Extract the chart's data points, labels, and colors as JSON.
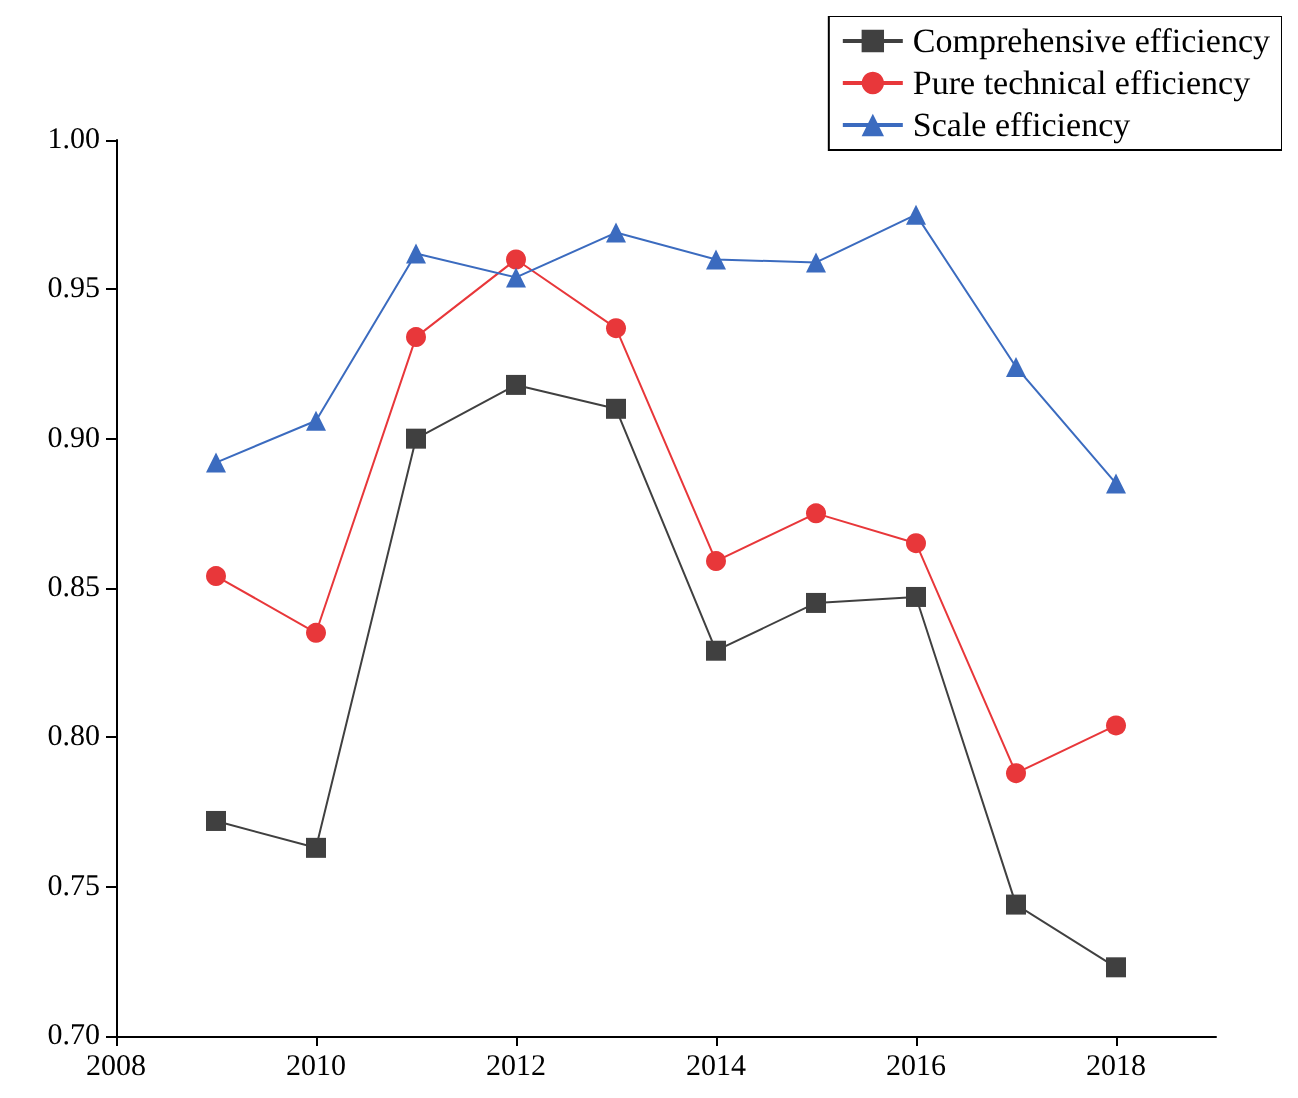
{
  "chart_data": {
    "type": "line",
    "x": [
      2009,
      2010,
      2011,
      2012,
      2013,
      2014,
      2015,
      2016,
      2017,
      2018
    ],
    "series": [
      {
        "name": "Comprehensive efficiency",
        "color": "#404040",
        "marker": "square",
        "values": [
          0.772,
          0.763,
          0.9,
          0.918,
          0.91,
          0.829,
          0.845,
          0.847,
          0.744,
          0.723
        ]
      },
      {
        "name": "Pure technical efficiency",
        "color": "#e8373a",
        "marker": "circle",
        "values": [
          0.854,
          0.835,
          0.934,
          0.96,
          0.937,
          0.859,
          0.875,
          0.865,
          0.788,
          0.804
        ]
      },
      {
        "name": "Scale efficiency",
        "color": "#3b6bbf",
        "marker": "triangle",
        "values": [
          0.892,
          0.906,
          0.962,
          0.954,
          0.969,
          0.96,
          0.959,
          0.975,
          0.924,
          0.885
        ]
      }
    ],
    "xlim": [
      2008,
      2019
    ],
    "xticks": [
      2008,
      2010,
      2012,
      2014,
      2016,
      2018
    ],
    "ylim": [
      0.7,
      1.0
    ],
    "yticks": [
      {
        "value": 0.7,
        "label": "0.70"
      },
      {
        "value": 0.75,
        "label": "0.75"
      },
      {
        "value": 0.8,
        "label": "0.80"
      },
      {
        "value": 0.85,
        "label": "0.85"
      },
      {
        "value": 0.9,
        "label": "0.90"
      },
      {
        "value": 0.95,
        "label": "0.95"
      },
      {
        "value": 1.0,
        "label": "1.00"
      }
    ],
    "grid": false,
    "legend": "top right",
    "line_style": "solid"
  }
}
